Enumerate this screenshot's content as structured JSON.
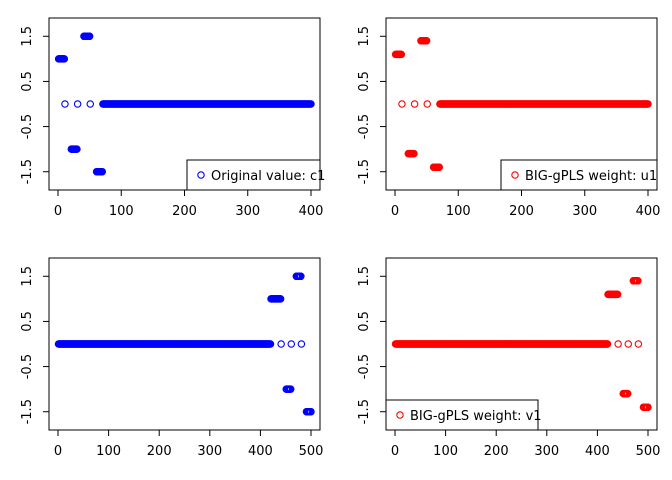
{
  "chart_data": [
    {
      "type": "scatter",
      "color": "#0000ff",
      "xlim": [
        0,
        400
      ],
      "ylim": [
        -1.75,
        1.75
      ],
      "x_ticks": [
        "0",
        "100",
        "200",
        "300",
        "400"
      ],
      "y_ticks": [
        "-1.5",
        "-0.5",
        "0.5",
        "1.5"
      ],
      "legend": {
        "label": "Original value: c1",
        "placement": "bottom-right"
      },
      "segments": [
        {
          "x_start": 1,
          "x_end": 10,
          "y": 1
        },
        {
          "x_start": 11,
          "x_end": 20,
          "y": 0,
          "step": 10
        },
        {
          "x_start": 21,
          "x_end": 30,
          "y": -1
        },
        {
          "x_start": 31,
          "x_end": 40,
          "y": 0,
          "step": 10
        },
        {
          "x_start": 41,
          "x_end": 50,
          "y": 1.5
        },
        {
          "x_start": 51,
          "x_end": 60,
          "y": 0,
          "step": 10
        },
        {
          "x_start": 61,
          "x_end": 70,
          "y": -1.5
        },
        {
          "x_start": 71,
          "x_end": 400,
          "y": 0
        }
      ]
    },
    {
      "type": "scatter",
      "color": "#ff0000",
      "xlim": [
        0,
        400
      ],
      "ylim": [
        -1.75,
        1.75
      ],
      "x_ticks": [
        "0",
        "100",
        "200",
        "300",
        "400"
      ],
      "y_ticks": [
        "-1.5",
        "-0.5",
        "0.5",
        "1.5"
      ],
      "legend": {
        "label": "BIG-gPLS weight: u1",
        "placement": "bottom-right"
      },
      "segments": [
        {
          "x_start": 1,
          "x_end": 10,
          "y": 1.1
        },
        {
          "x_start": 11,
          "x_end": 20,
          "y": 0,
          "step": 10
        },
        {
          "x_start": 21,
          "x_end": 30,
          "y": -1.1
        },
        {
          "x_start": 31,
          "x_end": 40,
          "y": 0,
          "step": 10
        },
        {
          "x_start": 41,
          "x_end": 50,
          "y": 1.4
        },
        {
          "x_start": 51,
          "x_end": 60,
          "y": 0,
          "step": 10
        },
        {
          "x_start": 61,
          "x_end": 70,
          "y": -1.4
        },
        {
          "x_start": 71,
          "x_end": 400,
          "y": 0
        }
      ]
    },
    {
      "type": "scatter",
      "color": "#0000ff",
      "xlim": [
        0,
        500
      ],
      "ylim": [
        -1.75,
        1.75
      ],
      "x_ticks": [
        "0",
        "100",
        "200",
        "300",
        "400",
        "500"
      ],
      "y_ticks": [
        "-1.5",
        "-0.5",
        "0.5",
        "1.5"
      ],
      "legend": null,
      "segments": [
        {
          "x_start": 1,
          "x_end": 420,
          "y": 0
        },
        {
          "x_start": 421,
          "x_end": 440,
          "y": 1
        },
        {
          "x_start": 441,
          "x_end": 450,
          "y": 0,
          "step": 10
        },
        {
          "x_start": 451,
          "x_end": 460,
          "y": -1
        },
        {
          "x_start": 461,
          "x_end": 470,
          "y": 0,
          "step": 10
        },
        {
          "x_start": 471,
          "x_end": 480,
          "y": 1.5
        },
        {
          "x_start": 481,
          "x_end": 490,
          "y": 0,
          "step": 10
        },
        {
          "x_start": 491,
          "x_end": 500,
          "y": -1.5
        }
      ]
    },
    {
      "type": "scatter",
      "color": "#ff0000",
      "xlim": [
        0,
        500
      ],
      "ylim": [
        -1.75,
        1.75
      ],
      "x_ticks": [
        "0",
        "100",
        "200",
        "300",
        "400",
        "500"
      ],
      "y_ticks": [
        "-1.5",
        "-0.5",
        "0.5",
        "1.5"
      ],
      "legend": {
        "label": "BIG-gPLS weight: v1",
        "placement": "bottom-left"
      },
      "segments": [
        {
          "x_start": 1,
          "x_end": 420,
          "y": 0
        },
        {
          "x_start": 421,
          "x_end": 440,
          "y": 1.1
        },
        {
          "x_start": 441,
          "x_end": 450,
          "y": 0,
          "step": 10
        },
        {
          "x_start": 451,
          "x_end": 460,
          "y": -1.1
        },
        {
          "x_start": 461,
          "x_end": 470,
          "y": 0,
          "step": 10
        },
        {
          "x_start": 471,
          "x_end": 480,
          "y": 1.4
        },
        {
          "x_start": 481,
          "x_end": 490,
          "y": 0,
          "step": 10
        },
        {
          "x_start": 491,
          "x_end": 500,
          "y": -1.4
        }
      ]
    }
  ]
}
